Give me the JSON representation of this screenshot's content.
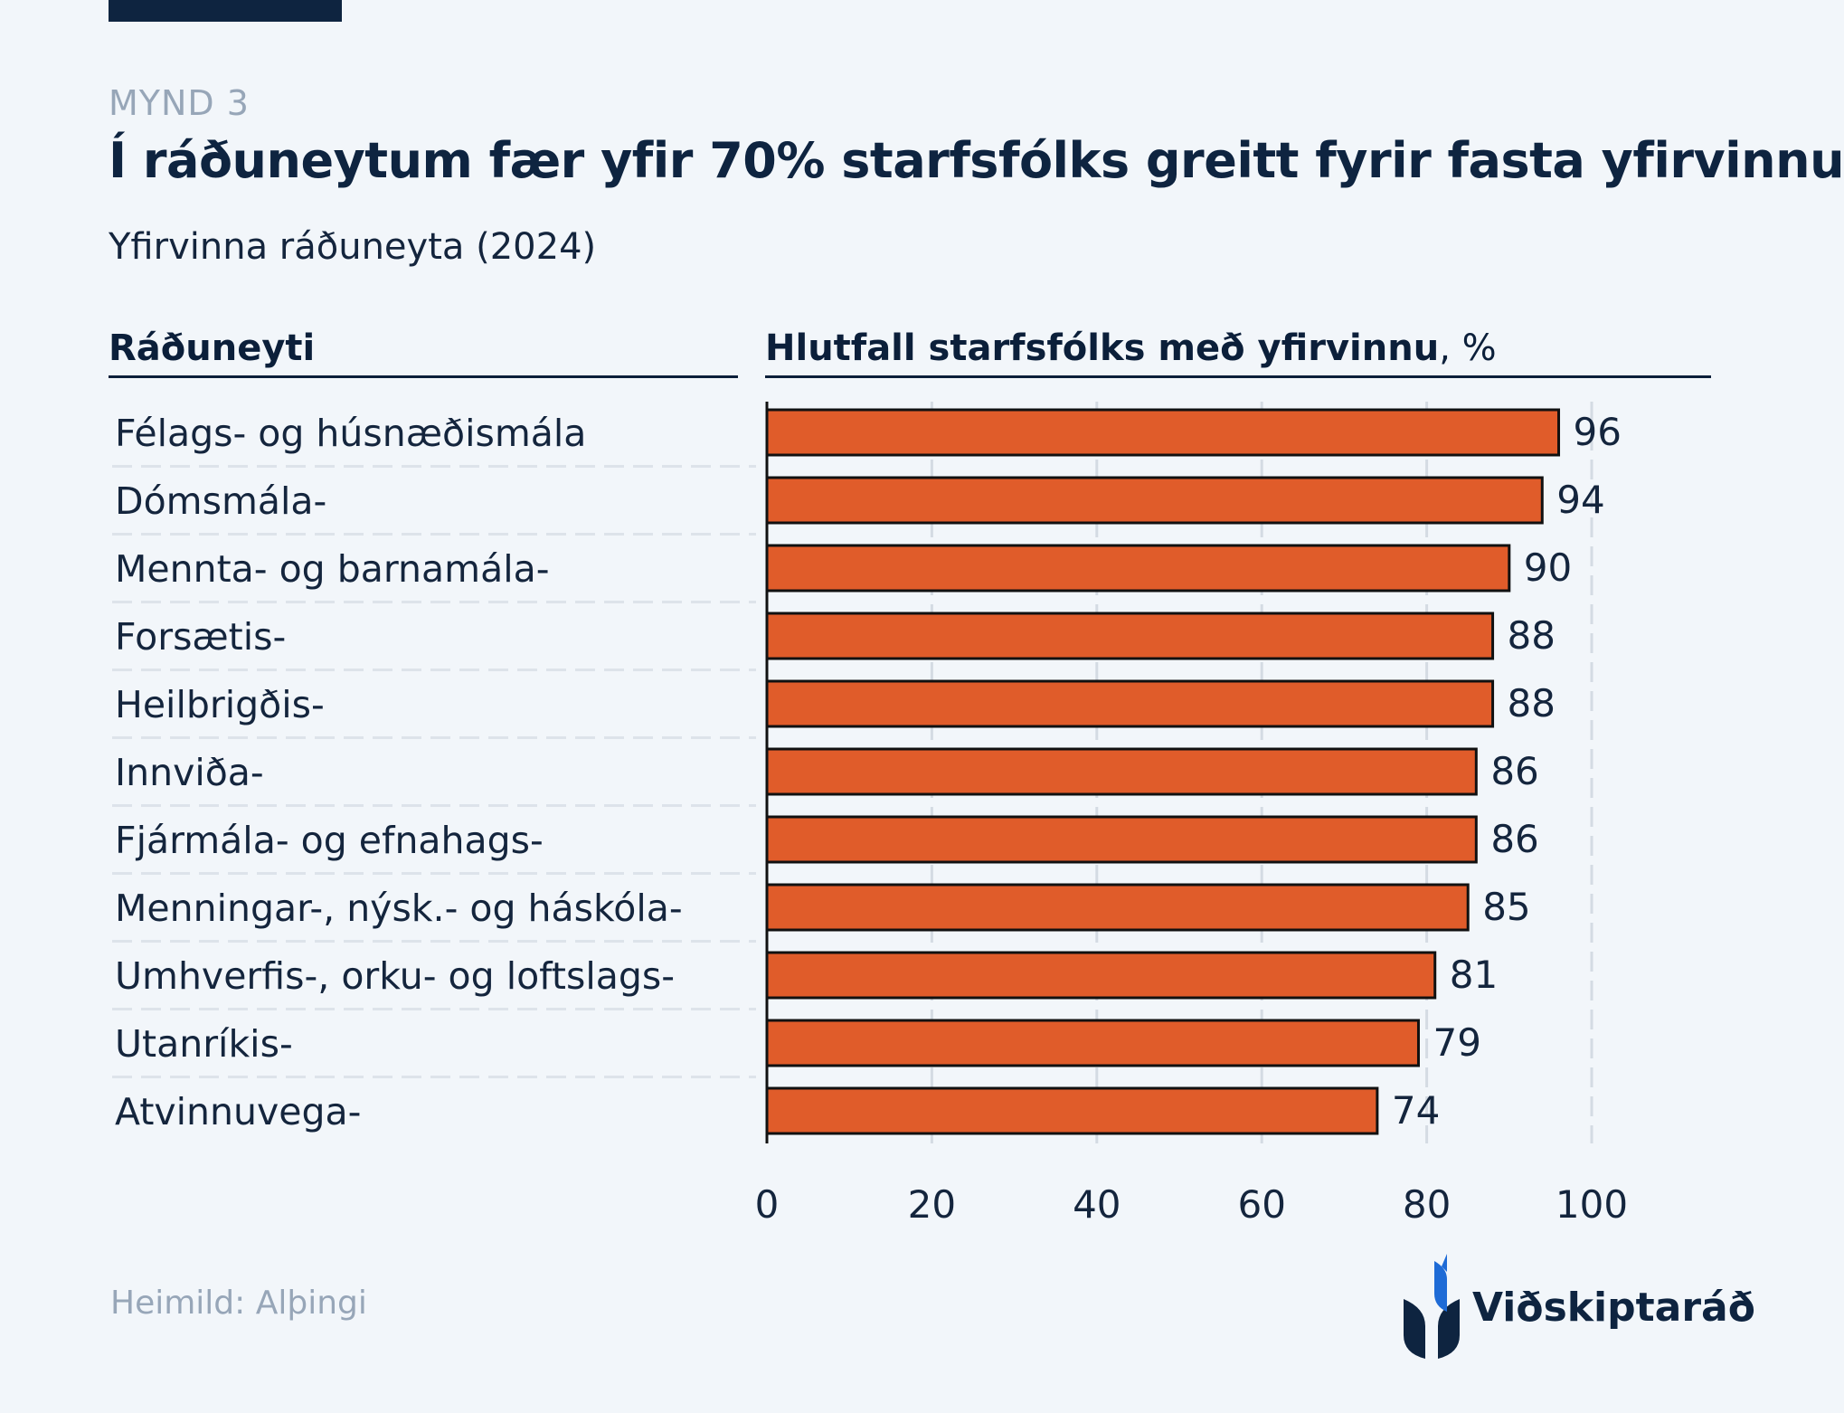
{
  "header": {
    "figure_label": "MYND 3",
    "title": "Í ráðuneytum fær yfir 70% starfsfólks greitt fyrir fasta yfirvinnu",
    "subtitle": "Yfirvinna ráðuneyta (2024)"
  },
  "columns": {
    "left": "Ráðuneyti",
    "right_bold": "Hlutfall starfsfólks með yfirvinnu",
    "right_unit": ", %"
  },
  "chart_data": {
    "type": "bar",
    "orientation": "horizontal",
    "categories": [
      "Félags- og húsnæðismála",
      "Dómsmála-",
      "Mennta- og barnamála-",
      "Forsætis-",
      "Heilbrigðis-",
      "Innviða-",
      "Fjármála- og efnahags-",
      "Menningar-, nýsk.- og háskóla-",
      "Umhverfis-, orku- og loftslags-",
      "Utanríkis-",
      "Atvinnuvega-"
    ],
    "values": [
      96,
      94,
      90,
      88,
      88,
      86,
      86,
      85,
      81,
      79,
      74
    ],
    "xlim": [
      0,
      100
    ],
    "xticks": [
      0,
      20,
      40,
      60,
      80,
      100
    ],
    "grid": true,
    "bar_color": "#e05c2a"
  },
  "footer": {
    "source": "Heimild: Alþingi",
    "brand": "Viðskiptaráð"
  }
}
